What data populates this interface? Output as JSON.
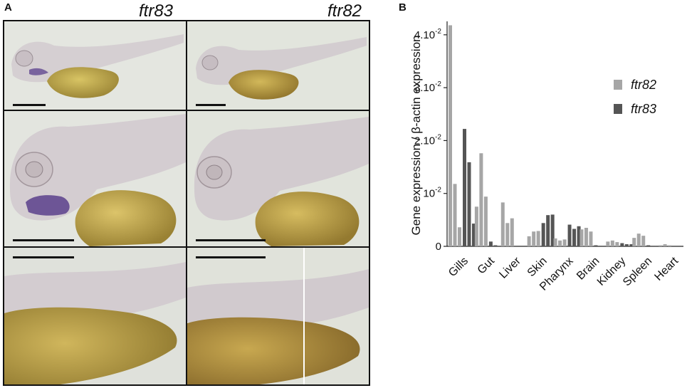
{
  "figure": {
    "panel_a_letter": "A",
    "panel_b_letter": "B",
    "column_titles": [
      "ftr83",
      "ftr82"
    ]
  },
  "colors": {
    "ftr82": "#a6a6a6",
    "ftr83": "#555555",
    "photo_background": "#e2e4dc",
    "larva_body": "#d6d0d2",
    "yolk": "#b7a04a",
    "stain": "#5a3f8c"
  },
  "chart_data": {
    "type": "bar",
    "title": "",
    "xlabel": "",
    "ylabel": "Gene expression / β-actin expression",
    "ylim": [
      0,
      0.042
    ],
    "yticks": [
      {
        "value": 0,
        "base": "0",
        "exp": ""
      },
      {
        "value": 0.01,
        "base": "10",
        "exp": "-2"
      },
      {
        "value": 0.02,
        "base": "2.10",
        "exp": "-2"
      },
      {
        "value": 0.03,
        "base": "3.10",
        "exp": "-2"
      },
      {
        "value": 0.04,
        "base": "4.10",
        "exp": "-2"
      }
    ],
    "legend_position": "right",
    "categories": [
      "Gills",
      "Gut",
      "Liver",
      "Skin",
      "Pharynx",
      "Brain",
      "Kidney",
      "Spleen",
      "Heart"
    ],
    "series": [
      {
        "name": "ftr82",
        "replicates": [
          [
            0.0418,
            0.0118,
            0.0036
          ],
          [
            0.0075,
            0.0176,
            0.0094
          ],
          [
            0.0083,
            0.0044,
            0.0053
          ],
          [
            0.0019,
            0.0028,
            0.0029
          ],
          [
            0.0015,
            0.0011,
            0.0013
          ],
          [
            0.0032,
            0.0035,
            0.0028
          ],
          [
            0.0009,
            0.0011,
            0.0008
          ],
          [
            0.0016,
            0.0024,
            0.002
          ],
          [
            0.0002,
            0.0004,
            0.0002
          ]
        ]
      },
      {
        "name": "ftr83",
        "replicates": [
          [
            0.0222,
            0.0159,
            0.0043
          ],
          [
            0.0009,
            0.0002,
            0.0
          ],
          [
            0.0,
            0.0,
            0.0
          ],
          [
            0.0044,
            0.0059,
            0.006
          ],
          [
            0.0041,
            0.0033,
            0.0038
          ],
          [
            0.0002,
            0.0001,
            0.0001
          ],
          [
            0.0006,
            0.0004,
            0.0004
          ],
          [
            0.0002,
            0.0001,
            0.0001
          ],
          [
            0.0,
            0.0,
            0.0
          ]
        ]
      }
    ]
  }
}
